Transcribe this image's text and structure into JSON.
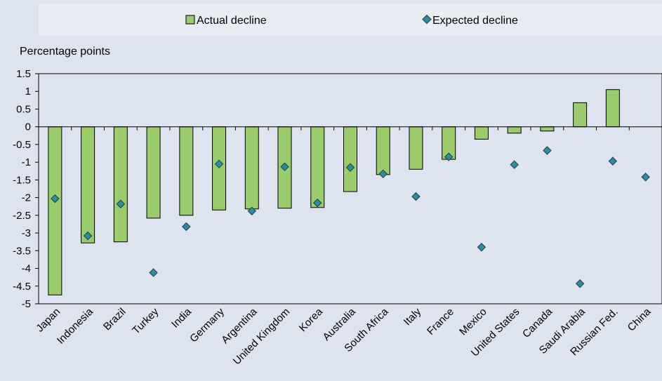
{
  "chart_data": {
    "type": "bar",
    "ylabel": "Percentage points",
    "ylim": [
      -5,
      1.5
    ],
    "yticks": [
      "1.5",
      "1",
      "0.5",
      "0",
      "-0.5",
      "-1",
      "-1.5",
      "-2",
      "-2.5",
      "-3",
      "-3.5",
      "-4",
      "-4.5",
      "-5"
    ],
    "categories": [
      "Japan",
      "Indonesia",
      "Brazil",
      "Turkey",
      "India",
      "Germany",
      "Argentina",
      "United Kingdom",
      "Korea",
      "Australia",
      "South Africa",
      "Italy",
      "France",
      "Mexico",
      "United States",
      "Canada",
      "Saudi Arabia",
      "Russian Fed.",
      "China"
    ],
    "series": [
      {
        "name": "Actual decline",
        "kind": "bar",
        "color": "#9bcc6b",
        "values": [
          -4.75,
          -3.28,
          -3.25,
          -2.58,
          -2.5,
          -2.35,
          -2.32,
          -2.3,
          -2.28,
          -1.83,
          -1.35,
          -1.2,
          -0.92,
          -0.35,
          -0.18,
          -0.12,
          0.68,
          1.05,
          null
        ]
      },
      {
        "name": "Expected decline",
        "kind": "marker",
        "color": "#2b8fa0",
        "values": [
          -2.03,
          -3.08,
          -2.18,
          -4.12,
          -2.82,
          -1.05,
          -2.38,
          -1.13,
          -2.15,
          -1.15,
          -1.33,
          -1.97,
          -0.85,
          -3.4,
          -1.07,
          -0.67,
          -4.43,
          -0.97,
          -1.42
        ]
      }
    ],
    "legend": {
      "position": "top",
      "items": [
        {
          "label": "Actual decline",
          "symbol": "bar"
        },
        {
          "label": "Expected decline",
          "symbol": "diamond"
        }
      ]
    },
    "grid": false
  }
}
